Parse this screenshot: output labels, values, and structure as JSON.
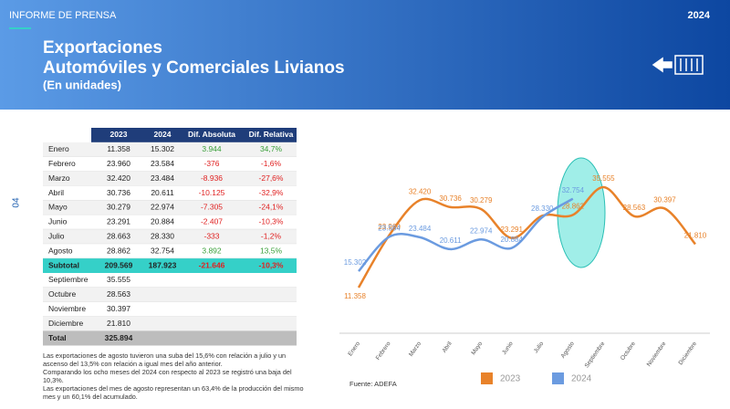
{
  "header": {
    "label": "INFORME DE PRENSA",
    "year": "2024",
    "title": [
      "Exportaciones",
      "Automóviles y Comerciales Livianos"
    ],
    "subtitle": "(En unidades)"
  },
  "page_number": "04",
  "table": {
    "header": [
      "2023",
      "2024",
      "Dif. Absoluta",
      "Dif. Relativa"
    ],
    "rows": [
      [
        "Enero",
        "11.358",
        "15.302",
        "3.944",
        "34,7%"
      ],
      [
        "Febrero",
        "23.960",
        "23.584",
        "-376",
        "-1,6%"
      ],
      [
        "Marzo",
        "32.420",
        "23.484",
        "-8.936",
        "-27,6%"
      ],
      [
        "Abril",
        "30.736",
        "20.611",
        "-10.125",
        "-32,9%"
      ],
      [
        "Mayo",
        "30.279",
        "22.974",
        "-7.305",
        "-24,1%"
      ],
      [
        "Junio",
        "23.291",
        "20.884",
        "-2.407",
        "-10,3%"
      ],
      [
        "Julio",
        "28.663",
        "28.330",
        "-333",
        "-1,2%"
      ],
      [
        "Agosto",
        "28.862",
        "32.754",
        "3.892",
        "13,5%"
      ],
      [
        "Subtotal",
        "209.569",
        "187.923",
        "-21.646",
        "-10,3%"
      ],
      [
        "Septiembre",
        "35.555"
      ],
      [
        "Octubre",
        "28.563"
      ],
      [
        "Noviembre",
        "30.397"
      ],
      [
        "Diciembre",
        "21.810"
      ],
      [
        "Total",
        "325.894"
      ]
    ]
  },
  "notes": [
    "Las exportaciones de agosto tuvieron una suba del 15,6% con relación a julio y un ascenso del 13,5% con relación a igual mes del año anterior.",
    "Comparando los ocho meses del 2024 con respecto al 2023 se registró una baja del 10,3%.",
    "Las exportaciones del mes de agosto representan un 63,4% de la producción del mismo mes y un 60,1% del acumulado."
  ],
  "source": "Fuente: ADEFA",
  "chart_data": {
    "type": "line",
    "categories": [
      "Enero",
      "Febrero",
      "Marzo",
      "Abril",
      "Mayo",
      "Junio",
      "Julio",
      "Agosto",
      "Septiembre",
      "Octubre",
      "Noviembre",
      "Diciembre"
    ],
    "series": [
      {
        "name": "2023",
        "color": "#e8822a",
        "values": [
          11358,
          23960,
          32420,
          30736,
          30279,
          23291,
          28663,
          28862,
          35555,
          28563,
          30397,
          21810
        ],
        "value_labels": [
          "11.358",
          "23.960",
          "32.420",
          "30.736",
          "30.279",
          "23.291",
          null,
          "28.862",
          "35.555",
          "28.563",
          "30.397",
          "21.810"
        ]
      },
      {
        "name": "2024",
        "color": "#6b9be0",
        "values": [
          15302,
          23584,
          23484,
          20611,
          22974,
          20884,
          28330,
          32754,
          null,
          null,
          null,
          null
        ],
        "value_labels": [
          "15.302",
          "23.584",
          "23.484",
          "20.611",
          "22.974",
          "20.884",
          "28.330",
          "32.754",
          null,
          null,
          null,
          null
        ]
      }
    ]
  }
}
